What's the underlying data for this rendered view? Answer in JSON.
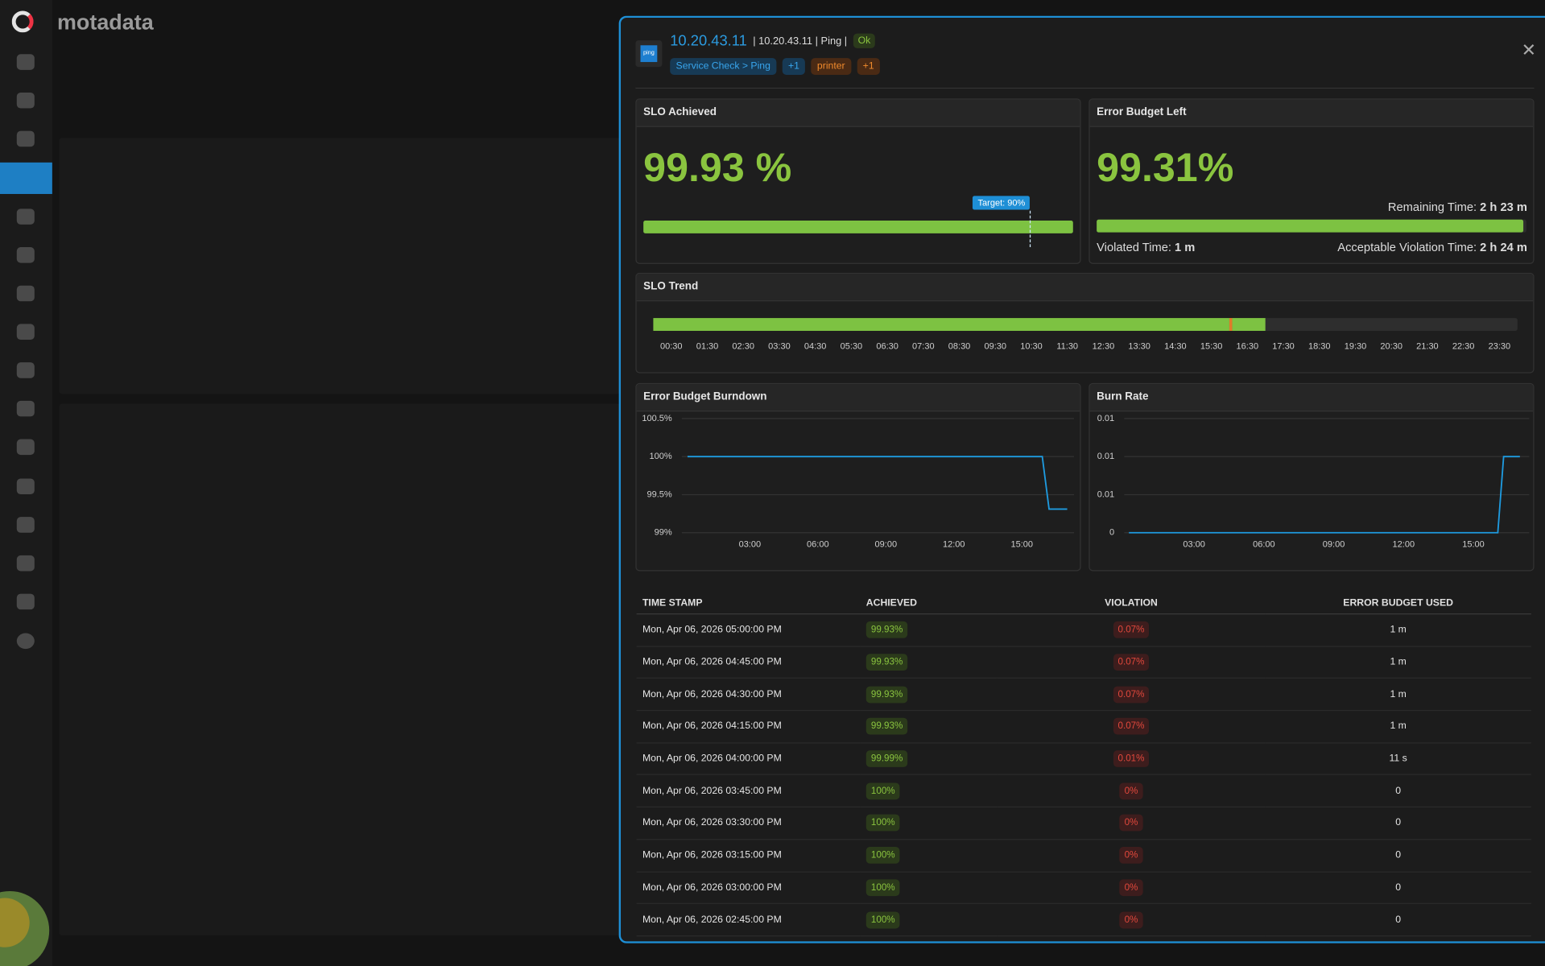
{
  "app": {
    "logo": "motadata"
  },
  "header": {
    "icon": "ping",
    "title": "10.20.43.11",
    "meta": "| 10.20.43.11 | Ping |",
    "status": "Ok",
    "tags": [
      "Service Check > Ping",
      "+1",
      "printer",
      "+1"
    ]
  },
  "slo_achieved": {
    "title": "SLO Achieved",
    "value": 99.93,
    "value_label": "99.93 %",
    "color": "#7dc242",
    "target": {
      "value": 90,
      "label": "Target: 90%"
    }
  },
  "error_budget_left": {
    "title": "Error Budget Left",
    "value": 99.31,
    "value_label": "99.31%",
    "color": "#7dc242",
    "remaining_label": "Remaining Time:",
    "remaining": "2 h 23 m",
    "violated_label": "Violated Time:",
    "violated": "1 m",
    "acceptable_label": "Acceptable Violation Time:",
    "acceptable": "2 h 24 m"
  },
  "chart_data": [
    {
      "type": "timeline",
      "title": "SLO Trend",
      "xlim": [
        0,
        24
      ],
      "xticks": [
        {
          "value": 0.5,
          "label": "00:30"
        },
        {
          "value": 1.5,
          "label": "01:30"
        },
        {
          "value": 2.5,
          "label": "02:30"
        },
        {
          "value": 3.5,
          "label": "03:30"
        },
        {
          "value": 4.5,
          "label": "04:30"
        },
        {
          "value": 5.5,
          "label": "05:30"
        },
        {
          "value": 6.5,
          "label": "06:30"
        },
        {
          "value": 7.5,
          "label": "07:30"
        },
        {
          "value": 8.5,
          "label": "08:30"
        },
        {
          "value": 9.5,
          "label": "09:30"
        },
        {
          "value": 10.5,
          "label": "10:30"
        },
        {
          "value": 11.5,
          "label": "11:30"
        },
        {
          "value": 12.5,
          "label": "12:30"
        },
        {
          "value": 13.5,
          "label": "13:30"
        },
        {
          "value": 14.5,
          "label": "14:30"
        },
        {
          "value": 15.5,
          "label": "15:30"
        },
        {
          "value": 16.5,
          "label": "16:30"
        },
        {
          "value": 17.5,
          "label": "17:30"
        },
        {
          "value": 18.5,
          "label": "18:30"
        },
        {
          "value": 19.5,
          "label": "19:30"
        },
        {
          "value": 20.5,
          "label": "20:30"
        },
        {
          "value": 21.5,
          "label": "21:30"
        },
        {
          "value": 22.5,
          "label": "22:30"
        },
        {
          "value": 23.5,
          "label": "23:30"
        }
      ],
      "segments": [
        {
          "start": 0,
          "end": 16,
          "color": "#7dc242"
        },
        {
          "start": 16,
          "end": 16.08,
          "color": "#e07b2a"
        },
        {
          "start": 16.08,
          "end": 17,
          "color": "#7dc242"
        }
      ]
    },
    {
      "type": "line",
      "title": "Error Budget Burndown",
      "color": "#1e9be0",
      "x": [
        0.25,
        15.9,
        16.2,
        17.0
      ],
      "values": [
        100,
        100,
        99.31,
        99.31
      ],
      "xlim": [
        0,
        17.3
      ],
      "xticks": [
        {
          "value": 3,
          "label": "03:00"
        },
        {
          "value": 6,
          "label": "06:00"
        },
        {
          "value": 9,
          "label": "09:00"
        },
        {
          "value": 12,
          "label": "12:00"
        },
        {
          "value": 15,
          "label": "15:00"
        }
      ],
      "ylim": [
        99,
        100.5
      ],
      "yticks": [
        {
          "value": 99,
          "label": "99%"
        },
        {
          "value": 99.5,
          "label": "99.5%"
        },
        {
          "value": 100,
          "label": "100%"
        },
        {
          "value": 100.5,
          "label": "100.5%"
        }
      ],
      "grid": true
    },
    {
      "type": "line",
      "title": "Burn Rate",
      "color": "#1e9be0",
      "x": [
        0.2,
        16.05,
        16.3,
        17.0
      ],
      "values": [
        0,
        0,
        0.01,
        0.01
      ],
      "xlim": [
        0,
        17.4
      ],
      "xticks": [
        {
          "value": 3,
          "label": "03:00"
        },
        {
          "value": 6,
          "label": "06:00"
        },
        {
          "value": 9,
          "label": "09:00"
        },
        {
          "value": 12,
          "label": "12:00"
        },
        {
          "value": 15,
          "label": "15:00"
        }
      ],
      "ylim": [
        0,
        0.015
      ],
      "yticks": [
        0,
        {
          "value": 0.005,
          "label": "0.01"
        },
        {
          "value": 0.01,
          "label": "0.01"
        },
        {
          "value": 0.015,
          "label": "0.01"
        }
      ],
      "grid": true
    }
  ],
  "table": {
    "columns": [
      "TIME STAMP",
      "ACHIEVED",
      "VIOLATION",
      "ERROR BUDGET USED"
    ],
    "rows": [
      [
        "Mon, Apr 06, 2026 05:00:00 PM",
        "99.93%",
        "0.07%",
        "1 m"
      ],
      [
        "Mon, Apr 06, 2026 04:45:00 PM",
        "99.93%",
        "0.07%",
        "1 m"
      ],
      [
        "Mon, Apr 06, 2026 04:30:00 PM",
        "99.93%",
        "0.07%",
        "1 m"
      ],
      [
        "Mon, Apr 06, 2026 04:15:00 PM",
        "99.93%",
        "0.07%",
        "1 m"
      ],
      [
        "Mon, Apr 06, 2026 04:00:00 PM",
        "99.99%",
        "0.01%",
        "11 s"
      ],
      [
        "Mon, Apr 06, 2026 03:45:00 PM",
        "100%",
        "0%",
        "0"
      ],
      [
        "Mon, Apr 06, 2026 03:30:00 PM",
        "100%",
        "0%",
        "0"
      ],
      [
        "Mon, Apr 06, 2026 03:15:00 PM",
        "100%",
        "0%",
        "0"
      ],
      [
        "Mon, Apr 06, 2026 03:00:00 PM",
        "100%",
        "0%",
        "0"
      ],
      [
        "Mon, Apr 06, 2026 02:45:00 PM",
        "100%",
        "0%",
        "0"
      ]
    ]
  }
}
